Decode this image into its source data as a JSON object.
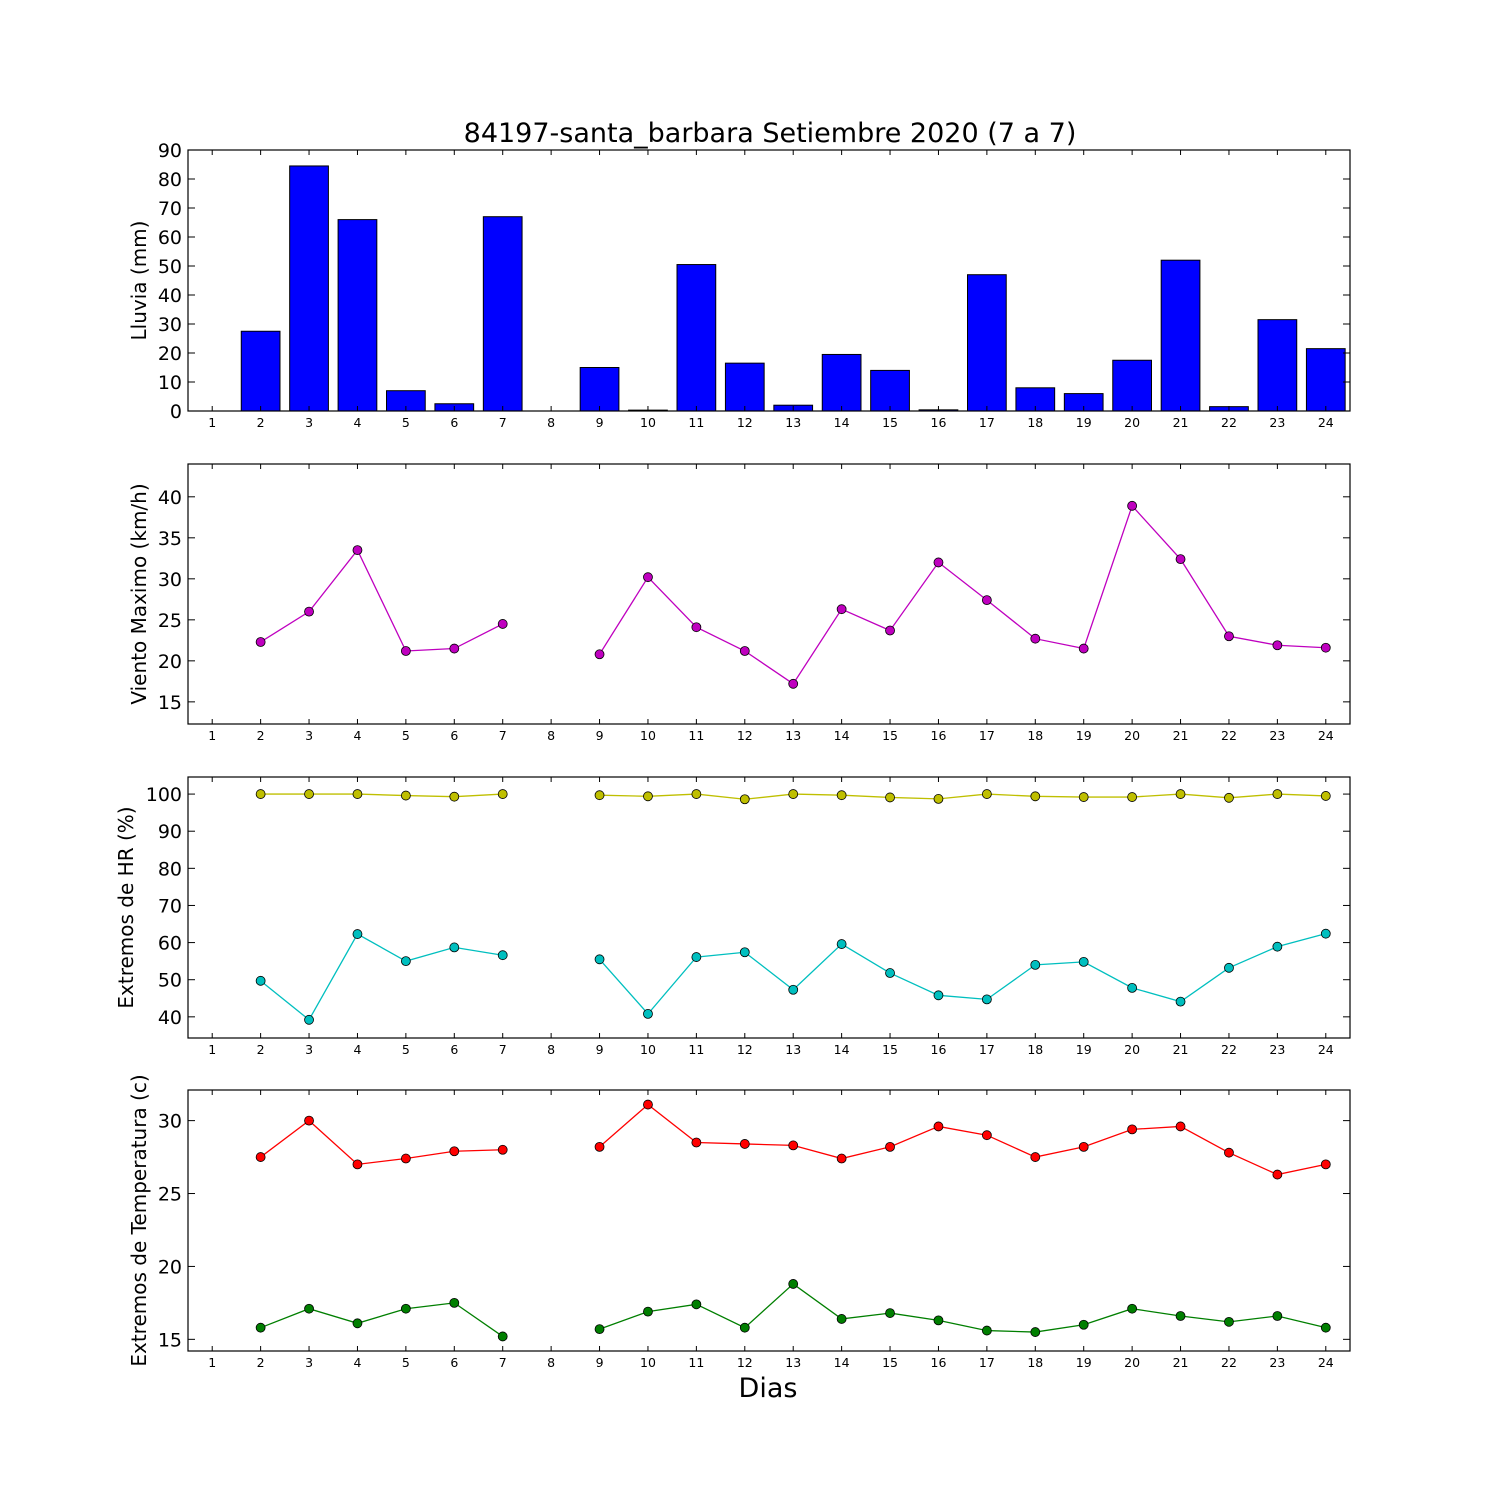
{
  "chart_data": [
    {
      "type": "bar",
      "title": "84197-santa_barbara Setiembre 2020  (7 a 7)",
      "ylabel": "Lluvia (mm)",
      "ylim": [
        0,
        90
      ],
      "yticks": [
        0,
        10,
        20,
        30,
        40,
        50,
        60,
        70,
        80,
        90
      ],
      "categories": [
        1,
        2,
        3,
        4,
        5,
        6,
        7,
        8,
        9,
        10,
        11,
        12,
        13,
        14,
        15,
        16,
        17,
        18,
        19,
        20,
        21,
        22,
        23,
        24
      ],
      "values": [
        0,
        27.5,
        84.5,
        66,
        7,
        2.5,
        67,
        0,
        15,
        0.3,
        50.5,
        16.5,
        2,
        19.5,
        14,
        0.4,
        47,
        8,
        6,
        17.5,
        52,
        1.5,
        31.5,
        21.5
      ],
      "color": "#0000ff"
    },
    {
      "type": "line",
      "ylabel": "Viento Maximo (km/h)",
      "ylim": [
        12.3,
        44
      ],
      "yticks": [
        15,
        20,
        25,
        30,
        35,
        40
      ],
      "x": [
        1,
        2,
        3,
        4,
        5,
        6,
        7,
        8,
        9,
        10,
        11,
        12,
        13,
        14,
        15,
        16,
        17,
        18,
        19,
        20,
        21,
        22,
        23,
        24
      ],
      "series": [
        {
          "color": "#bf00bf",
          "values": [
            null,
            22.3,
            26,
            33.5,
            21.2,
            21.5,
            24.5,
            null,
            20.8,
            30.2,
            24.1,
            21.2,
            17.2,
            26.3,
            23.7,
            32,
            27.4,
            22.7,
            21.5,
            38.9,
            32.4,
            23,
            21.9,
            21.6
          ]
        }
      ]
    },
    {
      "type": "line",
      "ylabel": "Extremos de HR (%)",
      "ylim": [
        34.3,
        104.6
      ],
      "yticks": [
        40,
        50,
        60,
        70,
        80,
        90,
        100
      ],
      "x": [
        1,
        2,
        3,
        4,
        5,
        6,
        7,
        8,
        9,
        10,
        11,
        12,
        13,
        14,
        15,
        16,
        17,
        18,
        19,
        20,
        21,
        22,
        23,
        24
      ],
      "series": [
        {
          "color": "#bfbf00",
          "values": [
            null,
            100,
            100,
            100,
            99.6,
            99.3,
            100,
            null,
            99.7,
            99.4,
            100,
            98.6,
            100,
            99.7,
            99.1,
            98.7,
            100,
            99.4,
            99.2,
            99.2,
            100,
            99,
            100,
            99.5
          ]
        },
        {
          "color": "#00bfbf",
          "values": [
            null,
            49.7,
            39.2,
            62.3,
            55,
            58.7,
            56.6,
            null,
            55.5,
            40.8,
            56.1,
            57.4,
            47.3,
            59.6,
            51.8,
            45.8,
            44.7,
            54,
            54.8,
            47.8,
            44.1,
            53.2,
            58.9,
            62.4
          ]
        }
      ]
    },
    {
      "type": "line",
      "xlabel": "Dias",
      "ylabel": "Extremos de Temperatura (c)",
      "ylim": [
        14.2,
        32.1
      ],
      "yticks": [
        15,
        20,
        25,
        30
      ],
      "x": [
        1,
        2,
        3,
        4,
        5,
        6,
        7,
        8,
        9,
        10,
        11,
        12,
        13,
        14,
        15,
        16,
        17,
        18,
        19,
        20,
        21,
        22,
        23,
        24
      ],
      "series": [
        {
          "color": "#ff0000",
          "values": [
            null,
            27.5,
            30,
            27,
            27.4,
            27.9,
            28,
            null,
            28.2,
            31.1,
            28.5,
            28.4,
            28.3,
            27.4,
            28.2,
            29.6,
            29,
            27.5,
            28.2,
            29.4,
            29.6,
            27.8,
            26.3,
            27
          ]
        },
        {
          "color": "#007f00",
          "values": [
            null,
            15.8,
            17.1,
            16.1,
            17.1,
            17.5,
            15.2,
            null,
            15.7,
            16.9,
            17.4,
            15.8,
            18.8,
            16.4,
            16.8,
            16.3,
            15.6,
            15.5,
            16,
            17.1,
            16.6,
            16.2,
            16.6,
            15.8
          ]
        }
      ]
    }
  ]
}
